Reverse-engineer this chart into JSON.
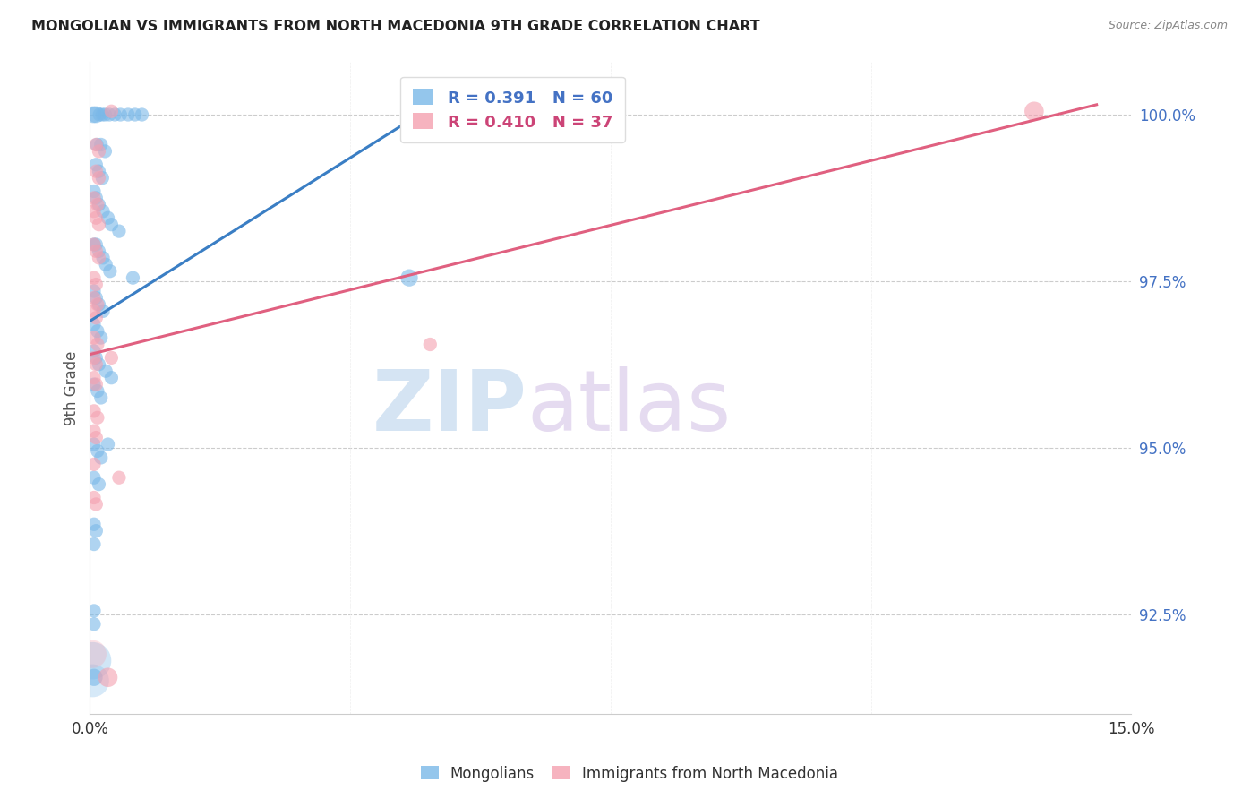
{
  "title": "MONGOLIAN VS IMMIGRANTS FROM NORTH MACEDONIA 9TH GRADE CORRELATION CHART",
  "source": "Source: ZipAtlas.com",
  "ylabel": "9th Grade",
  "xlim": [
    0.0,
    15.0
  ],
  "ylim": [
    91.0,
    100.8
  ],
  "yticks": [
    92.5,
    95.0,
    97.5,
    100.0
  ],
  "ytick_labels": [
    "92.5%",
    "95.0%",
    "97.5%",
    "100.0%"
  ],
  "blue_r": 0.391,
  "blue_n": 60,
  "pink_r": 0.41,
  "pink_n": 37,
  "blue_color": "#7ab8e8",
  "pink_color": "#f4a0b0",
  "blue_line_color": "#3a7ec4",
  "pink_line_color": "#e06080",
  "legend_label_blue": "Mongolians",
  "legend_label_pink": "Immigrants from North Macedonia",
  "watermark_zip": "ZIP",
  "watermark_atlas": "atlas",
  "blue_line_x": [
    0.0,
    5.2
  ],
  "blue_line_y": [
    96.9,
    100.3
  ],
  "pink_line_x": [
    0.0,
    14.5
  ],
  "pink_line_y": [
    96.4,
    100.15
  ],
  "blue_points": [
    [
      0.05,
      100.0
    ],
    [
      0.09,
      100.0
    ],
    [
      0.14,
      100.0
    ],
    [
      0.18,
      100.0
    ],
    [
      0.22,
      100.0
    ],
    [
      0.28,
      100.0
    ],
    [
      0.36,
      100.0
    ],
    [
      0.44,
      100.0
    ],
    [
      0.65,
      100.0
    ],
    [
      0.55,
      100.0
    ],
    [
      0.75,
      100.0
    ],
    [
      0.1,
      99.55
    ],
    [
      0.16,
      99.55
    ],
    [
      0.22,
      99.45
    ],
    [
      0.09,
      99.25
    ],
    [
      0.13,
      99.15
    ],
    [
      0.18,
      99.05
    ],
    [
      0.06,
      98.85
    ],
    [
      0.09,
      98.75
    ],
    [
      0.13,
      98.65
    ],
    [
      0.19,
      98.55
    ],
    [
      0.26,
      98.45
    ],
    [
      0.31,
      98.35
    ],
    [
      0.42,
      98.25
    ],
    [
      0.06,
      98.05
    ],
    [
      0.09,
      98.05
    ],
    [
      0.13,
      97.95
    ],
    [
      0.19,
      97.85
    ],
    [
      0.23,
      97.75
    ],
    [
      0.29,
      97.65
    ],
    [
      0.62,
      97.55
    ],
    [
      0.06,
      97.35
    ],
    [
      0.09,
      97.25
    ],
    [
      0.13,
      97.15
    ],
    [
      0.19,
      97.05
    ],
    [
      0.06,
      96.85
    ],
    [
      0.11,
      96.75
    ],
    [
      0.16,
      96.65
    ],
    [
      0.06,
      96.45
    ],
    [
      0.09,
      96.35
    ],
    [
      0.13,
      96.25
    ],
    [
      0.23,
      96.15
    ],
    [
      0.31,
      96.05
    ],
    [
      0.06,
      95.95
    ],
    [
      0.11,
      95.85
    ],
    [
      0.16,
      95.75
    ],
    [
      0.06,
      95.05
    ],
    [
      0.11,
      94.95
    ],
    [
      0.16,
      94.85
    ],
    [
      0.06,
      94.55
    ],
    [
      0.13,
      94.45
    ],
    [
      0.06,
      93.85
    ],
    [
      0.09,
      93.75
    ],
    [
      0.06,
      93.55
    ],
    [
      0.06,
      92.55
    ],
    [
      0.06,
      92.35
    ],
    [
      0.06,
      91.55
    ],
    [
      0.26,
      95.05
    ],
    [
      4.6,
      97.55
    ],
    [
      5.0,
      100.0
    ]
  ],
  "pink_points": [
    [
      0.31,
      100.05
    ],
    [
      13.6,
      100.05
    ],
    [
      0.09,
      99.55
    ],
    [
      0.13,
      99.45
    ],
    [
      0.09,
      99.15
    ],
    [
      0.13,
      99.05
    ],
    [
      0.06,
      98.75
    ],
    [
      0.11,
      98.65
    ],
    [
      0.06,
      98.55
    ],
    [
      0.09,
      98.45
    ],
    [
      0.13,
      98.35
    ],
    [
      0.06,
      98.05
    ],
    [
      0.09,
      97.95
    ],
    [
      0.13,
      97.85
    ],
    [
      0.06,
      97.55
    ],
    [
      0.09,
      97.45
    ],
    [
      0.06,
      97.25
    ],
    [
      0.11,
      97.15
    ],
    [
      0.06,
      97.05
    ],
    [
      0.09,
      96.95
    ],
    [
      0.06,
      96.65
    ],
    [
      0.11,
      96.55
    ],
    [
      0.06,
      96.35
    ],
    [
      0.09,
      96.25
    ],
    [
      0.06,
      96.05
    ],
    [
      0.09,
      95.95
    ],
    [
      0.06,
      95.55
    ],
    [
      0.11,
      95.45
    ],
    [
      0.06,
      95.25
    ],
    [
      0.09,
      95.15
    ],
    [
      0.31,
      96.35
    ],
    [
      0.06,
      94.75
    ],
    [
      0.06,
      94.25
    ],
    [
      0.09,
      94.15
    ],
    [
      0.26,
      91.55
    ],
    [
      0.42,
      94.55
    ],
    [
      4.9,
      96.55
    ]
  ],
  "blue_marker_size": 11,
  "pink_marker_size": 11,
  "big_blue_size": 22,
  "big_pink_size": 22
}
